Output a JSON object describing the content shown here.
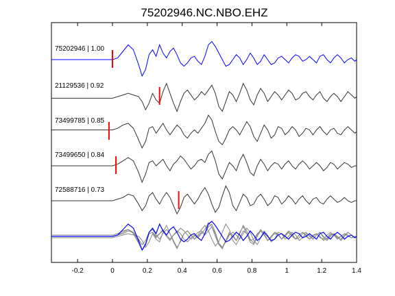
{
  "chart_data": {
    "type": "line",
    "title": "75202946.NC.NBO.EHZ",
    "xlabel": "",
    "ylabel": "",
    "xlim": [
      -0.35,
      1.4
    ],
    "xticks": [
      -0.2,
      0,
      0.2,
      0.4,
      0.6,
      0.8,
      1,
      1.2,
      1.4
    ],
    "xtick_labels": [
      "-0.2",
      "0",
      "0.2",
      "0.4",
      "0.6",
      "0.8",
      "1",
      "1.2",
      "1.4"
    ],
    "grid": false,
    "colors": {
      "reference": "#0000ff",
      "trace": "#333333",
      "overlay": "#888888",
      "pick": "#ff0000"
    },
    "traces": [
      {
        "label": "75202946 | 1.00",
        "color": "#0000ff",
        "pick_time": 0.0,
        "x": [
          -0.35,
          0.0,
          0.03,
          0.06,
          0.09,
          0.12,
          0.15,
          0.17,
          0.19,
          0.21,
          0.23,
          0.25,
          0.27,
          0.29,
          0.31,
          0.33,
          0.35,
          0.37,
          0.39,
          0.41,
          0.43,
          0.45,
          0.47,
          0.49,
          0.51,
          0.53,
          0.55,
          0.57,
          0.59,
          0.61,
          0.63,
          0.65,
          0.67,
          0.69,
          0.71,
          0.73,
          0.75,
          0.77,
          0.79,
          0.81,
          0.83,
          0.85,
          0.87,
          0.89,
          0.91,
          0.93,
          0.95,
          0.97,
          0.99,
          1.01,
          1.03,
          1.05,
          1.07,
          1.09,
          1.11,
          1.13,
          1.15,
          1.17,
          1.19,
          1.21,
          1.23,
          1.25,
          1.27,
          1.29,
          1.31,
          1.33,
          1.35,
          1.37,
          1.39,
          1.4
        ],
        "y": [
          0.0,
          0.0,
          0.1,
          0.5,
          0.9,
          0.6,
          -0.3,
          -1.0,
          -0.6,
          0.3,
          0.6,
          0.2,
          0.9,
          0.4,
          0.1,
          0.5,
          0.7,
          0.3,
          -0.2,
          -0.4,
          -0.2,
          0.1,
          0.2,
          -0.1,
          -0.3,
          0.2,
          0.9,
          1.1,
          0.8,
          0.4,
          0.0,
          -0.4,
          -0.3,
          0.0,
          0.3,
          0.1,
          -0.3,
          0.0,
          0.4,
          0.1,
          -0.3,
          -0.1,
          0.3,
          0.0,
          -0.3,
          -0.2,
          0.1,
          0.2,
          0.0,
          -0.2,
          0.1,
          0.3,
          0.2,
          -0.1,
          0.0,
          0.2,
          0.0,
          -0.2,
          0.2,
          0.3,
          0.0,
          -0.2,
          0.1,
          0.3,
          0.1,
          -0.2,
          0.0,
          0.1,
          -0.1,
          0.0
        ]
      },
      {
        "label": "21129536 | 0.92",
        "color": "#333333",
        "pick_time": 0.27,
        "x": [
          -0.35,
          0.0,
          0.03,
          0.06,
          0.09,
          0.12,
          0.15,
          0.17,
          0.19,
          0.21,
          0.23,
          0.25,
          0.27,
          0.29,
          0.31,
          0.33,
          0.35,
          0.37,
          0.39,
          0.41,
          0.43,
          0.45,
          0.47,
          0.49,
          0.51,
          0.53,
          0.55,
          0.57,
          0.59,
          0.61,
          0.63,
          0.65,
          0.67,
          0.69,
          0.71,
          0.73,
          0.75,
          0.77,
          0.79,
          0.81,
          0.83,
          0.85,
          0.87,
          0.89,
          0.91,
          0.93,
          0.95,
          0.97,
          0.99,
          1.01,
          1.03,
          1.05,
          1.07,
          1.09,
          1.11,
          1.13,
          1.15,
          1.17,
          1.19,
          1.21,
          1.23,
          1.25,
          1.27,
          1.29,
          1.31,
          1.33,
          1.35,
          1.37,
          1.39,
          1.4
        ],
        "y": [
          -0.1,
          -0.1,
          0.0,
          0.1,
          0.2,
          0.1,
          0.0,
          -0.3,
          -0.8,
          -0.4,
          0.2,
          -0.2,
          -0.4,
          0.3,
          0.8,
          0.2,
          -0.4,
          -0.9,
          -0.3,
          0.2,
          0.4,
          0.1,
          -0.2,
          0.0,
          0.3,
          0.1,
          0.4,
          0.7,
          0.2,
          -0.6,
          -0.9,
          -0.3,
          0.3,
          0.1,
          -0.3,
          0.2,
          0.8,
          0.4,
          -0.2,
          -0.5,
          0.1,
          0.5,
          0.2,
          -0.3,
          0.0,
          0.3,
          0.1,
          -0.2,
          0.1,
          0.4,
          0.2,
          -0.2,
          -0.1,
          0.2,
          0.3,
          0.0,
          -0.2,
          0.1,
          0.3,
          -0.1,
          -0.3,
          0.0,
          0.2,
          0.0,
          -0.3,
          0.0,
          0.3,
          0.1,
          -0.1,
          0.0
        ]
      },
      {
        "label": "73499785 | 0.85",
        "color": "#333333",
        "pick_time": -0.02,
        "x": [
          -0.35,
          0.0,
          0.03,
          0.06,
          0.09,
          0.12,
          0.15,
          0.17,
          0.19,
          0.21,
          0.23,
          0.25,
          0.27,
          0.29,
          0.31,
          0.33,
          0.35,
          0.37,
          0.39,
          0.41,
          0.43,
          0.45,
          0.47,
          0.49,
          0.51,
          0.53,
          0.55,
          0.57,
          0.59,
          0.61,
          0.63,
          0.65,
          0.67,
          0.69,
          0.71,
          0.73,
          0.75,
          0.77,
          0.79,
          0.81,
          0.83,
          0.85,
          0.87,
          0.89,
          0.91,
          0.93,
          0.95,
          0.97,
          0.99,
          1.01,
          1.03,
          1.05,
          1.07,
          1.09,
          1.11,
          1.13,
          1.15,
          1.17,
          1.19,
          1.21,
          1.23,
          1.25,
          1.27,
          1.29,
          1.31,
          1.33,
          1.35,
          1.37,
          1.39,
          1.4
        ],
        "y": [
          0.1,
          0.1,
          0.2,
          0.4,
          0.5,
          0.2,
          -0.5,
          -1.0,
          -0.6,
          0.2,
          0.3,
          -0.1,
          0.2,
          0.5,
          0.1,
          -0.2,
          0.1,
          0.4,
          0.2,
          -0.2,
          -0.4,
          -0.1,
          0.1,
          -0.1,
          0.2,
          0.5,
          1.0,
          0.7,
          0.0,
          -0.6,
          -0.8,
          -0.4,
          0.1,
          0.3,
          0.1,
          -0.2,
          0.2,
          0.6,
          0.3,
          -0.3,
          -0.6,
          -0.1,
          0.4,
          0.1,
          -0.4,
          -0.2,
          0.3,
          0.2,
          -0.2,
          0.0,
          0.3,
          0.1,
          -0.3,
          -0.1,
          0.2,
          0.1,
          -0.2,
          0.1,
          0.3,
          0.0,
          -0.2,
          0.1,
          0.2,
          -0.1,
          -0.2,
          0.1,
          0.3,
          0.1,
          -0.1,
          0.0
        ]
      },
      {
        "label": "73499650 | 0.84",
        "color": "#333333",
        "pick_time": 0.02,
        "x": [
          -0.35,
          0.0,
          0.03,
          0.06,
          0.09,
          0.12,
          0.15,
          0.17,
          0.19,
          0.21,
          0.23,
          0.25,
          0.27,
          0.29,
          0.31,
          0.33,
          0.35,
          0.37,
          0.39,
          0.41,
          0.43,
          0.45,
          0.47,
          0.49,
          0.51,
          0.53,
          0.55,
          0.57,
          0.59,
          0.61,
          0.63,
          0.65,
          0.67,
          0.69,
          0.71,
          0.73,
          0.75,
          0.77,
          0.79,
          0.81,
          0.83,
          0.85,
          0.87,
          0.89,
          0.91,
          0.93,
          0.95,
          0.97,
          0.99,
          1.01,
          1.03,
          1.05,
          1.07,
          1.09,
          1.11,
          1.13,
          1.15,
          1.17,
          1.19,
          1.21,
          1.23,
          1.25,
          1.27,
          1.29,
          1.31,
          1.33,
          1.35,
          1.37,
          1.39,
          1.4
        ],
        "y": [
          0.0,
          0.0,
          0.1,
          0.3,
          0.5,
          0.3,
          -0.4,
          -1.0,
          -0.5,
          0.2,
          0.3,
          0.0,
          0.2,
          0.4,
          0.0,
          -0.3,
          0.1,
          0.3,
          0.6,
          0.4,
          0.1,
          -0.2,
          0.0,
          0.3,
          0.4,
          0.2,
          0.7,
          0.9,
          0.3,
          -0.5,
          -0.8,
          -0.3,
          0.2,
          0.0,
          -0.3,
          0.3,
          0.7,
          0.2,
          -0.4,
          -0.6,
          0.0,
          0.4,
          0.1,
          -0.3,
          0.0,
          0.2,
          0.1,
          -0.2,
          0.1,
          0.3,
          0.0,
          -0.2,
          0.1,
          0.3,
          0.1,
          -0.2,
          0.0,
          0.2,
          0.0,
          -0.3,
          -0.1,
          0.2,
          0.1,
          -0.2,
          0.0,
          0.2,
          0.1,
          -0.1,
          0.0,
          0.0
        ]
      },
      {
        "label": "72588716 | 0.73",
        "color": "#333333",
        "pick_time": 0.38,
        "x": [
          -0.35,
          0.0,
          0.03,
          0.06,
          0.09,
          0.12,
          0.15,
          0.17,
          0.19,
          0.21,
          0.23,
          0.25,
          0.27,
          0.29,
          0.31,
          0.33,
          0.35,
          0.37,
          0.39,
          0.41,
          0.43,
          0.45,
          0.47,
          0.49,
          0.51,
          0.53,
          0.55,
          0.57,
          0.59,
          0.61,
          0.63,
          0.65,
          0.67,
          0.69,
          0.71,
          0.73,
          0.75,
          0.77,
          0.79,
          0.81,
          0.83,
          0.85,
          0.87,
          0.89,
          0.91,
          0.93,
          0.95,
          0.97,
          0.99,
          1.01,
          1.03,
          1.05,
          1.07,
          1.09,
          1.11,
          1.13,
          1.15,
          1.17,
          1.19,
          1.21,
          1.23,
          1.25,
          1.27,
          1.29,
          1.31,
          1.33,
          1.35,
          1.37,
          1.39,
          1.4
        ],
        "y": [
          0.0,
          0.0,
          0.1,
          0.2,
          0.4,
          0.3,
          -0.2,
          -0.6,
          -0.3,
          0.3,
          0.5,
          0.1,
          -0.2,
          0.2,
          0.5,
          0.2,
          -0.3,
          -0.8,
          -0.4,
          0.2,
          0.4,
          0.1,
          -0.2,
          0.1,
          0.5,
          0.8,
          0.4,
          -0.2,
          -0.7,
          -0.4,
          0.3,
          0.9,
          0.5,
          -0.3,
          -0.6,
          -0.1,
          0.4,
          0.2,
          -0.3,
          -0.2,
          0.2,
          0.4,
          0.1,
          -0.3,
          -0.1,
          0.3,
          0.2,
          -0.2,
          0.0,
          0.3,
          0.1,
          -0.2,
          0.1,
          0.3,
          0.0,
          -0.2,
          0.1,
          0.2,
          -0.1,
          -0.2,
          0.1,
          0.3,
          0.1,
          -0.1,
          0.0,
          0.2,
          0.0,
          -0.1,
          0.0,
          0.0
        ]
      }
    ]
  }
}
